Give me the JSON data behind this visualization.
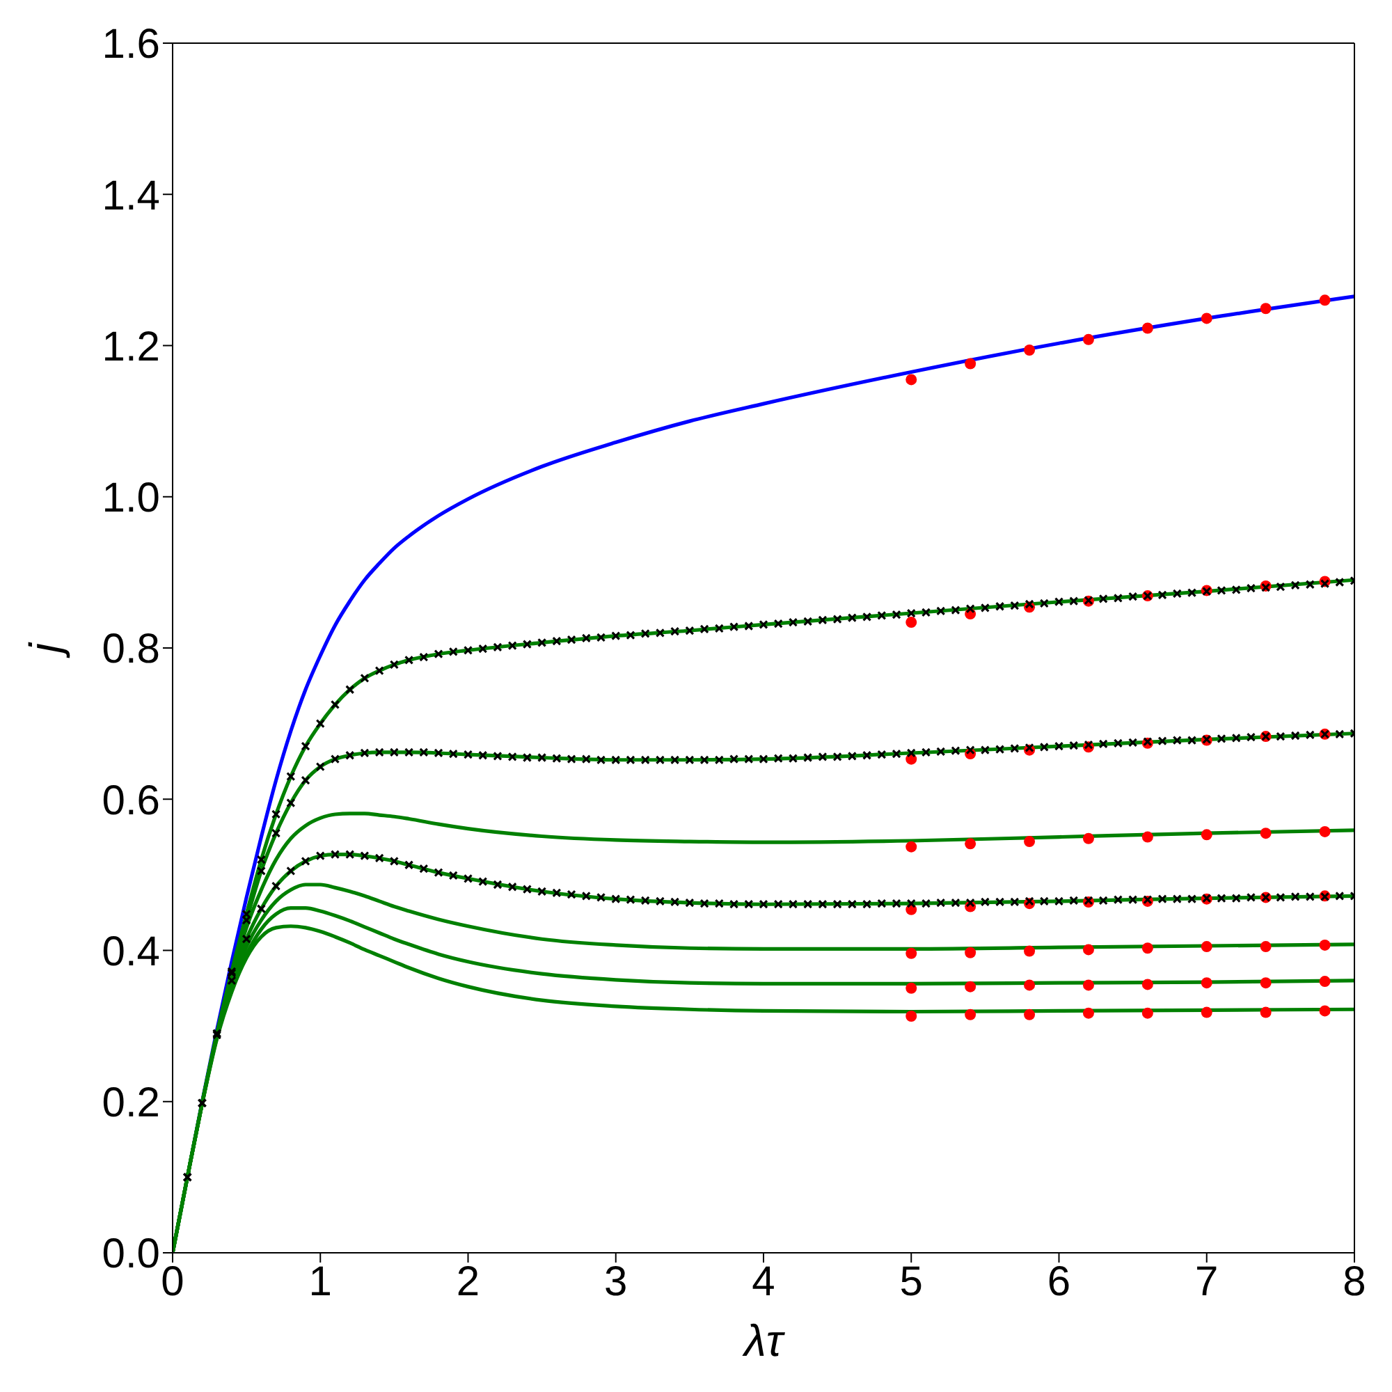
{
  "chart_data": {
    "type": "line",
    "xlabel": "λτ",
    "ylabel": "j",
    "xlim": [
      0,
      8
    ],
    "xticks": [
      0,
      1,
      2,
      3,
      4,
      5,
      6,
      7,
      8
    ],
    "ylim": [
      0,
      1.6
    ],
    "yticks": [
      {
        "value": 0,
        "label": "0.0"
      },
      0.2,
      0.4,
      0.6,
      0.8,
      {
        "value": 1,
        "label": "1.0"
      },
      1.2,
      1.4,
      1.6
    ],
    "line_style": "solid",
    "series": [
      {
        "marker": "none",
        "color": "#0000ff",
        "x": [
          0,
          0.1,
          0.2,
          0.3,
          0.4,
          0.5,
          0.6,
          0.7,
          0.8,
          0.9,
          1,
          1.1,
          1.2,
          1.3,
          1.4,
          1.5,
          1.6,
          1.8,
          2,
          2.5,
          3,
          3.5,
          4,
          5,
          6,
          7,
          8
        ],
        "values": [
          0,
          0.1,
          0.2,
          0.295,
          0.385,
          0.47,
          0.55,
          0.625,
          0.69,
          0.745,
          0.79,
          0.83,
          0.862,
          0.89,
          0.912,
          0.932,
          0.948,
          0.975,
          0.997,
          1.04,
          1.072,
          1.1,
          1.123,
          1.165,
          1.203,
          1.236,
          1.265
        ]
      },
      {
        "type": "line",
        "marker": "none",
        "color": "#008000",
        "x": [
          0,
          0.1,
          0.2,
          0.3,
          0.4,
          0.5,
          0.6,
          0.7,
          0.8,
          0.9,
          1,
          1.1,
          1.2,
          1.3,
          1.4,
          1.5,
          1.6,
          1.8,
          2,
          2.5,
          3,
          3.5,
          4,
          5,
          6,
          7,
          8
        ],
        "values": [
          0,
          0.1,
          0.198,
          0.29,
          0.372,
          0.448,
          0.52,
          0.58,
          0.63,
          0.67,
          0.7,
          0.725,
          0.745,
          0.76,
          0.77,
          0.778,
          0.784,
          0.792,
          0.797,
          0.807,
          0.816,
          0.823,
          0.831,
          0.846,
          0.861,
          0.875,
          0.89
        ]
      },
      {
        "type": "line",
        "marker": "none",
        "color": "#008000",
        "x": [
          0,
          0.1,
          0.2,
          0.3,
          0.4,
          0.5,
          0.6,
          0.7,
          0.8,
          0.9,
          1,
          1.1,
          1.2,
          1.3,
          1.4,
          1.5,
          1.6,
          1.8,
          2,
          2.5,
          3,
          3.5,
          4,
          5,
          6,
          7,
          8
        ],
        "values": [
          0,
          0.1,
          0.198,
          0.29,
          0.37,
          0.44,
          0.505,
          0.555,
          0.595,
          0.625,
          0.643,
          0.653,
          0.658,
          0.661,
          0.662,
          0.662,
          0.662,
          0.661,
          0.659,
          0.655,
          0.652,
          0.652,
          0.653,
          0.661,
          0.67,
          0.679,
          0.687
        ]
      },
      {
        "type": "line",
        "marker": "none",
        "color": "#008000",
        "x": [
          0,
          0.1,
          0.2,
          0.3,
          0.4,
          0.5,
          0.6,
          0.7,
          0.8,
          0.9,
          1,
          1.1,
          1.2,
          1.3,
          1.4,
          1.5,
          1.6,
          1.8,
          2,
          2.5,
          3,
          3.5,
          4,
          5,
          6,
          7,
          8
        ],
        "values": [
          0,
          0.1,
          0.198,
          0.288,
          0.365,
          0.43,
          0.48,
          0.52,
          0.548,
          0.565,
          0.575,
          0.58,
          0.581,
          0.581,
          0.579,
          0.577,
          0.574,
          0.567,
          0.561,
          0.551,
          0.546,
          0.544,
          0.543,
          0.545,
          0.55,
          0.555,
          0.559
        ]
      },
      {
        "type": "line",
        "marker": "none",
        "color": "#008000",
        "x": [
          0,
          0.1,
          0.2,
          0.3,
          0.4,
          0.5,
          0.6,
          0.7,
          0.8,
          0.9,
          1,
          1.1,
          1.2,
          1.3,
          1.4,
          1.5,
          1.6,
          1.8,
          2,
          2.5,
          3,
          3.5,
          4,
          5,
          6,
          7,
          8
        ],
        "values": [
          0,
          0.1,
          0.198,
          0.288,
          0.36,
          0.415,
          0.455,
          0.485,
          0.505,
          0.518,
          0.525,
          0.527,
          0.527,
          0.525,
          0.522,
          0.518,
          0.513,
          0.503,
          0.495,
          0.478,
          0.468,
          0.463,
          0.461,
          0.462,
          0.465,
          0.469,
          0.472
        ]
      },
      {
        "type": "line",
        "marker": "none",
        "color": "#008000",
        "x": [
          0,
          0.1,
          0.2,
          0.3,
          0.4,
          0.5,
          0.6,
          0.7,
          0.8,
          0.9,
          1,
          1.1,
          1.2,
          1.3,
          1.4,
          1.5,
          1.6,
          1.8,
          2,
          2.5,
          3,
          3.5,
          4,
          5,
          6,
          7,
          8
        ],
        "values": [
          0,
          0.1,
          0.198,
          0.287,
          0.355,
          0.405,
          0.44,
          0.465,
          0.48,
          0.487,
          0.487,
          0.483,
          0.478,
          0.472,
          0.465,
          0.458,
          0.452,
          0.441,
          0.432,
          0.415,
          0.407,
          0.403,
          0.402,
          0.402,
          0.404,
          0.406,
          0.408
        ]
      },
      {
        "type": "line",
        "marker": "none",
        "color": "#008000",
        "x": [
          0,
          0.1,
          0.2,
          0.3,
          0.4,
          0.5,
          0.6,
          0.7,
          0.8,
          0.9,
          1,
          1.1,
          1.2,
          1.3,
          1.4,
          1.5,
          1.6,
          1.8,
          2,
          2.5,
          3,
          3.5,
          4,
          5,
          6,
          7,
          8
        ],
        "values": [
          0,
          0.1,
          0.197,
          0.285,
          0.35,
          0.395,
          0.428,
          0.448,
          0.456,
          0.456,
          0.452,
          0.446,
          0.439,
          0.431,
          0.423,
          0.415,
          0.408,
          0.395,
          0.385,
          0.369,
          0.361,
          0.357,
          0.356,
          0.356,
          0.357,
          0.358,
          0.36
        ]
      },
      {
        "type": "line",
        "marker": "none",
        "color": "#008000",
        "x": [
          0,
          0.1,
          0.2,
          0.3,
          0.4,
          0.5,
          0.6,
          0.7,
          0.8,
          0.9,
          1,
          1.1,
          1.2,
          1.3,
          1.4,
          1.5,
          1.6,
          1.8,
          2,
          2.5,
          3,
          3.5,
          4,
          5,
          6,
          7,
          8
        ],
        "values": [
          0,
          0.1,
          0.197,
          0.283,
          0.345,
          0.39,
          0.418,
          0.43,
          0.432,
          0.43,
          0.425,
          0.418,
          0.41,
          0.401,
          0.393,
          0.385,
          0.377,
          0.363,
          0.352,
          0.334,
          0.326,
          0.322,
          0.32,
          0.319,
          0.32,
          0.321,
          0.322
        ]
      },
      {
        "type": "scatter",
        "marker": "cross",
        "color": "#000000",
        "x": [
          0.1,
          0.2,
          0.3,
          0.4,
          0.5,
          0.6,
          0.7,
          0.8,
          0.9,
          1.0,
          1.1,
          1.2,
          1.3,
          1.4,
          1.5,
          1.6,
          1.7,
          1.8,
          1.9,
          2.0,
          2.1,
          2.2,
          2.3,
          2.4,
          2.5,
          2.6,
          2.7,
          2.8,
          2.9,
          3.0,
          3.1,
          3.2,
          3.3,
          3.4,
          3.5,
          3.6,
          3.7,
          3.8,
          3.9,
          4.0,
          4.1,
          4.2,
          4.3,
          4.4,
          4.5,
          4.6,
          4.7,
          4.8,
          4.9,
          5.0,
          5.1,
          5.2,
          5.3,
          5.4,
          5.5,
          5.6,
          5.7,
          5.8,
          5.9,
          6.0,
          6.1,
          6.2,
          6.3,
          6.4,
          6.5,
          6.6,
          6.7,
          6.8,
          6.9,
          7.0,
          7.1,
          7.2,
          7.3,
          7.4,
          7.5,
          7.6,
          7.7,
          7.8,
          7.9,
          8.0
        ],
        "values": [
          0.1,
          0.198,
          0.29,
          0.372,
          0.448,
          0.52,
          0.58,
          0.63,
          0.67,
          0.7,
          0.725,
          0.745,
          0.76,
          0.77,
          0.778,
          0.784,
          0.788,
          0.792,
          0.795,
          0.797,
          0.799,
          0.801,
          0.803,
          0.805,
          0.807,
          0.809,
          0.811,
          0.813,
          0.814,
          0.816,
          0.817,
          0.819,
          0.82,
          0.822,
          0.823,
          0.825,
          0.826,
          0.828,
          0.829,
          0.831,
          0.832,
          0.834,
          0.835,
          0.837,
          0.838,
          0.84,
          0.841,
          0.843,
          0.844,
          0.846,
          0.847,
          0.849,
          0.85,
          0.852,
          0.853,
          0.855,
          0.856,
          0.858,
          0.859,
          0.861,
          0.862,
          0.863,
          0.865,
          0.866,
          0.868,
          0.869,
          0.87,
          0.872,
          0.873,
          0.875,
          0.876,
          0.877,
          0.879,
          0.88,
          0.881,
          0.883,
          0.884,
          0.885,
          0.887,
          0.889
        ]
      },
      {
        "type": "scatter",
        "marker": "cross",
        "color": "#000000",
        "x": [
          0.1,
          0.2,
          0.3,
          0.4,
          0.5,
          0.6,
          0.7,
          0.8,
          0.9,
          1.0,
          1.1,
          1.2,
          1.3,
          1.4,
          1.5,
          1.6,
          1.7,
          1.8,
          1.9,
          2.0,
          2.1,
          2.2,
          2.3,
          2.4,
          2.5,
          2.6,
          2.7,
          2.8,
          2.9,
          3.0,
          3.1,
          3.2,
          3.3,
          3.4,
          3.5,
          3.6,
          3.7,
          3.8,
          3.9,
          4.0,
          4.1,
          4.2,
          4.3,
          4.4,
          4.5,
          4.6,
          4.7,
          4.8,
          4.9,
          5.0,
          5.1,
          5.2,
          5.3,
          5.4,
          5.5,
          5.6,
          5.7,
          5.8,
          5.9,
          6.0,
          6.1,
          6.2,
          6.3,
          6.4,
          6.5,
          6.6,
          6.7,
          6.8,
          6.9,
          7.0,
          7.1,
          7.2,
          7.3,
          7.4,
          7.5,
          7.6,
          7.7,
          7.8,
          7.9,
          8.0
        ],
        "values": [
          0.1,
          0.198,
          0.29,
          0.37,
          0.44,
          0.505,
          0.555,
          0.595,
          0.625,
          0.643,
          0.653,
          0.658,
          0.661,
          0.662,
          0.662,
          0.662,
          0.662,
          0.661,
          0.66,
          0.659,
          0.658,
          0.657,
          0.656,
          0.655,
          0.655,
          0.654,
          0.653,
          0.653,
          0.652,
          0.652,
          0.652,
          0.652,
          0.652,
          0.652,
          0.652,
          0.652,
          0.652,
          0.653,
          0.653,
          0.653,
          0.654,
          0.654,
          0.655,
          0.656,
          0.656,
          0.657,
          0.658,
          0.659,
          0.66,
          0.661,
          0.662,
          0.663,
          0.664,
          0.665,
          0.665,
          0.666,
          0.667,
          0.668,
          0.669,
          0.67,
          0.671,
          0.672,
          0.673,
          0.674,
          0.675,
          0.676,
          0.677,
          0.678,
          0.678,
          0.679,
          0.68,
          0.681,
          0.682,
          0.683,
          0.683,
          0.684,
          0.685,
          0.686,
          0.686,
          0.687
        ]
      },
      {
        "type": "scatter",
        "marker": "cross",
        "color": "#000000",
        "x": [
          0.1,
          0.2,
          0.3,
          0.4,
          0.5,
          0.6,
          0.7,
          0.8,
          0.9,
          1.0,
          1.1,
          1.2,
          1.3,
          1.4,
          1.5,
          1.6,
          1.7,
          1.8,
          1.9,
          2.0,
          2.1,
          2.2,
          2.3,
          2.4,
          2.5,
          2.6,
          2.7,
          2.8,
          2.9,
          3.0,
          3.1,
          3.2,
          3.3,
          3.4,
          3.5,
          3.6,
          3.7,
          3.8,
          3.9,
          4.0,
          4.1,
          4.2,
          4.3,
          4.4,
          4.5,
          4.6,
          4.7,
          4.8,
          4.9,
          5.0,
          5.1,
          5.2,
          5.3,
          5.4,
          5.5,
          5.6,
          5.7,
          5.8,
          5.9,
          6.0,
          6.1,
          6.2,
          6.3,
          6.4,
          6.5,
          6.6,
          6.7,
          6.8,
          6.9,
          7.0,
          7.1,
          7.2,
          7.3,
          7.4,
          7.5,
          7.6,
          7.7,
          7.8,
          7.9,
          8.0
        ],
        "values": [
          0.1,
          0.198,
          0.288,
          0.36,
          0.415,
          0.455,
          0.485,
          0.505,
          0.518,
          0.525,
          0.527,
          0.527,
          0.525,
          0.522,
          0.518,
          0.513,
          0.508,
          0.503,
          0.499,
          0.495,
          0.491,
          0.487,
          0.484,
          0.481,
          0.478,
          0.476,
          0.474,
          0.472,
          0.47,
          0.468,
          0.467,
          0.466,
          0.465,
          0.464,
          0.463,
          0.462,
          0.462,
          0.461,
          0.461,
          0.461,
          0.461,
          0.461,
          0.461,
          0.461,
          0.461,
          0.461,
          0.461,
          0.462,
          0.462,
          0.462,
          0.462,
          0.463,
          0.463,
          0.463,
          0.464,
          0.464,
          0.464,
          0.465,
          0.465,
          0.465,
          0.466,
          0.466,
          0.466,
          0.467,
          0.467,
          0.467,
          0.468,
          0.468,
          0.468,
          0.469,
          0.469,
          0.469,
          0.47,
          0.47,
          0.47,
          0.471,
          0.471,
          0.471,
          0.472,
          0.472
        ]
      },
      {
        "type": "scatter",
        "marker": "circle",
        "color": "#ff0000",
        "x": [
          5,
          5.4,
          5.8,
          6.2,
          6.6,
          7,
          7.4,
          7.8
        ],
        "values": [
          1.155,
          1.176,
          1.194,
          1.208,
          1.223,
          1.236,
          1.249,
          1.26
        ]
      },
      {
        "type": "scatter",
        "marker": "circle",
        "color": "#ff0000",
        "x": [
          5,
          5.4,
          5.8,
          6.2,
          6.6,
          7,
          7.4,
          7.8
        ],
        "values": [
          0.834,
          0.845,
          0.854,
          0.862,
          0.869,
          0.876,
          0.882,
          0.888
        ]
      },
      {
        "type": "scatter",
        "marker": "circle",
        "color": "#ff0000",
        "x": [
          5,
          5.4,
          5.8,
          6.2,
          6.6,
          7,
          7.4,
          7.8
        ],
        "values": [
          0.653,
          0.66,
          0.665,
          0.669,
          0.674,
          0.678,
          0.683,
          0.686
        ]
      },
      {
        "type": "scatter",
        "marker": "circle",
        "color": "#ff0000",
        "x": [
          5,
          5.4,
          5.8,
          6.2,
          6.6,
          7,
          7.4,
          7.8
        ],
        "values": [
          0.537,
          0.541,
          0.544,
          0.548,
          0.55,
          0.553,
          0.555,
          0.557
        ]
      },
      {
        "type": "scatter",
        "marker": "circle",
        "color": "#ff0000",
        "x": [
          5,
          5.4,
          5.8,
          6.2,
          6.6,
          7,
          7.4,
          7.8
        ],
        "values": [
          0.454,
          0.458,
          0.462,
          0.464,
          0.465,
          0.468,
          0.47,
          0.472
        ]
      },
      {
        "type": "scatter",
        "marker": "circle",
        "color": "#ff0000",
        "x": [
          5,
          5.4,
          5.8,
          6.2,
          6.6,
          7,
          7.4,
          7.8
        ],
        "values": [
          0.396,
          0.397,
          0.399,
          0.401,
          0.403,
          0.405,
          0.405,
          0.407
        ]
      },
      {
        "type": "scatter",
        "marker": "circle",
        "color": "#ff0000",
        "x": [
          5,
          5.4,
          5.8,
          6.2,
          6.6,
          7,
          7.4,
          7.8
        ],
        "values": [
          0.35,
          0.352,
          0.354,
          0.354,
          0.355,
          0.357,
          0.357,
          0.359
        ]
      },
      {
        "type": "scatter",
        "marker": "circle",
        "color": "#ff0000",
        "x": [
          5,
          5.4,
          5.8,
          6.2,
          6.6,
          7,
          7.4,
          7.8
        ],
        "values": [
          0.313,
          0.315,
          0.315,
          0.317,
          0.317,
          0.318,
          0.318,
          0.32
        ]
      }
    ]
  }
}
